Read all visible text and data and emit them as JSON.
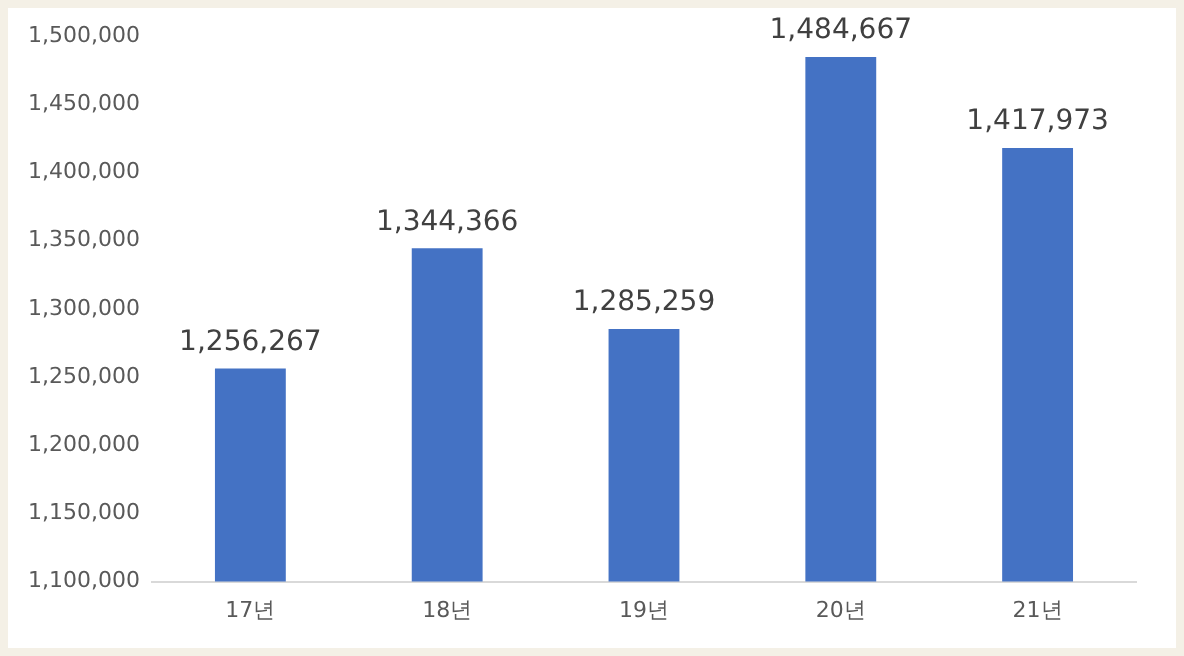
{
  "chart_data": {
    "type": "bar",
    "categories": [
      "17년",
      "18년",
      "19년",
      "20년",
      "21년"
    ],
    "values": [
      1256267,
      1344366,
      1285259,
      1484667,
      1417973
    ],
    "value_labels": [
      "1,256,267",
      "1,344,366",
      "1,285,259",
      "1,484,667",
      "1,417,973"
    ],
    "color": "#4472c4",
    "ylim": [
      1100000,
      1500000
    ],
    "yticks": [
      {
        "value": 1100000,
        "label": "1,100,000"
      },
      {
        "value": 1150000,
        "label": "1,150,000"
      },
      {
        "value": 1200000,
        "label": "1,200,000"
      },
      {
        "value": 1250000,
        "label": "1,250,000"
      },
      {
        "value": 1300000,
        "label": "1,300,000"
      },
      {
        "value": 1350000,
        "label": "1,350,000"
      },
      {
        "value": 1400000,
        "label": "1,400,000"
      },
      {
        "value": 1450000,
        "label": "1,450,000"
      },
      {
        "value": 1500000,
        "label": "1,500,000"
      }
    ]
  }
}
